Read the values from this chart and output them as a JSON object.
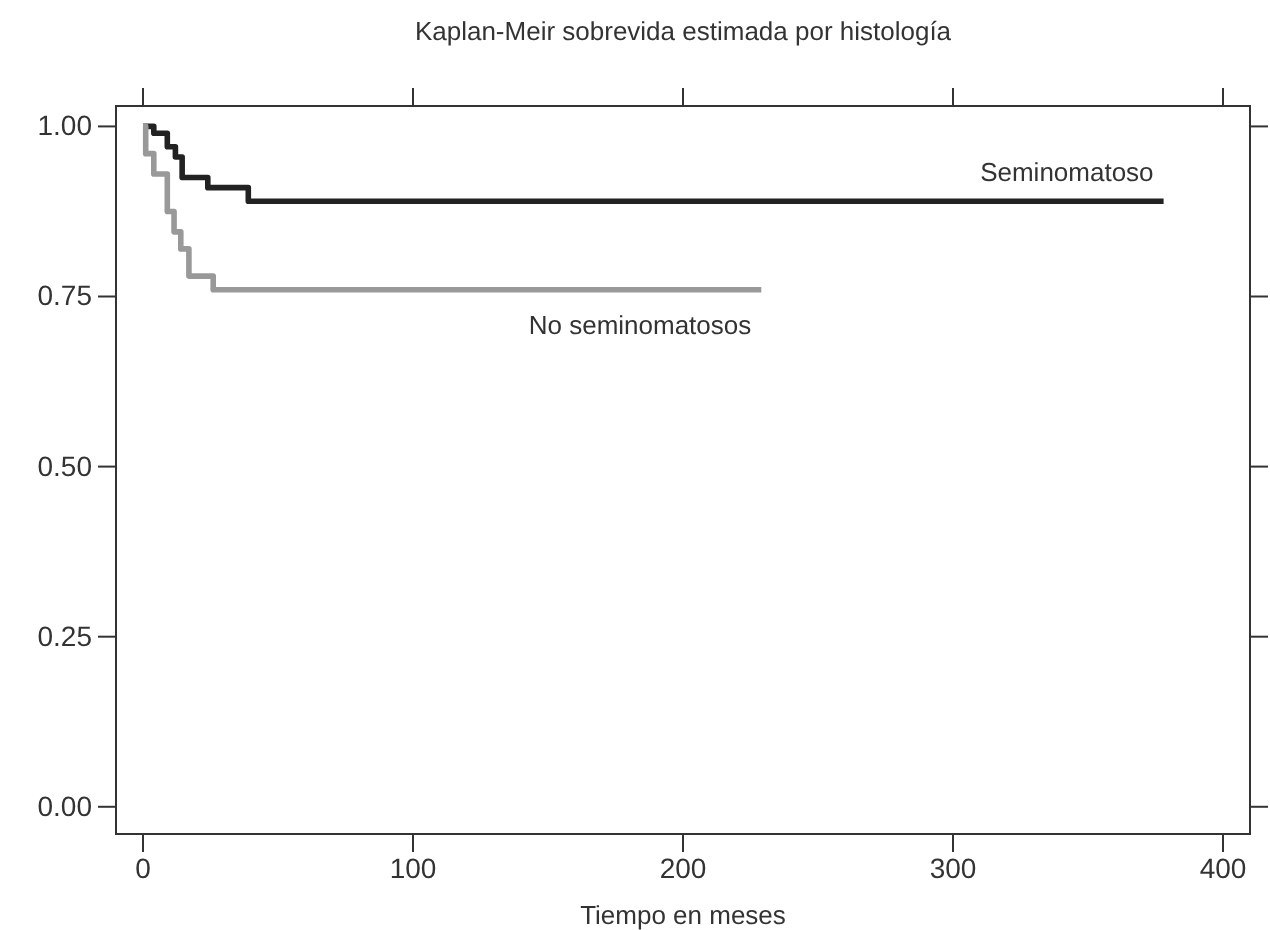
{
  "chart_data": {
    "type": "step",
    "title": "Kaplan-Meir sobrevida estimada por histología",
    "xlabel": "Tiempo en meses",
    "xlim": [
      -10,
      410
    ],
    "xticks": [
      0,
      100,
      200,
      300,
      400
    ],
    "ylim": [
      -0.04,
      1.03
    ],
    "yticks": [
      {
        "value": 0,
        "label": "0.00"
      },
      {
        "value": 0.25,
        "label": "0.25"
      },
      {
        "value": 0.5,
        "label": "0.50"
      },
      {
        "value": 0.75,
        "label": "0.75"
      },
      {
        "value": 1,
        "label": "1.00"
      }
    ],
    "series": [
      {
        "name": "Seminomatoso",
        "color": "#222222",
        "x": [
          0,
          4,
          9,
          12,
          14.5,
          24,
          39,
          378
        ],
        "values": [
          1,
          0.99,
          0.97,
          0.955,
          0.925,
          0.91,
          0.89,
          0.89
        ]
      },
      {
        "name": "No seminomatosos",
        "color": "#999999",
        "x": [
          0,
          1,
          4,
          9,
          11.5,
          14,
          17,
          26,
          229
        ],
        "values": [
          1,
          0.96,
          0.93,
          0.875,
          0.845,
          0.82,
          0.78,
          0.76,
          0.76
        ]
      }
    ],
    "grid": false
  }
}
